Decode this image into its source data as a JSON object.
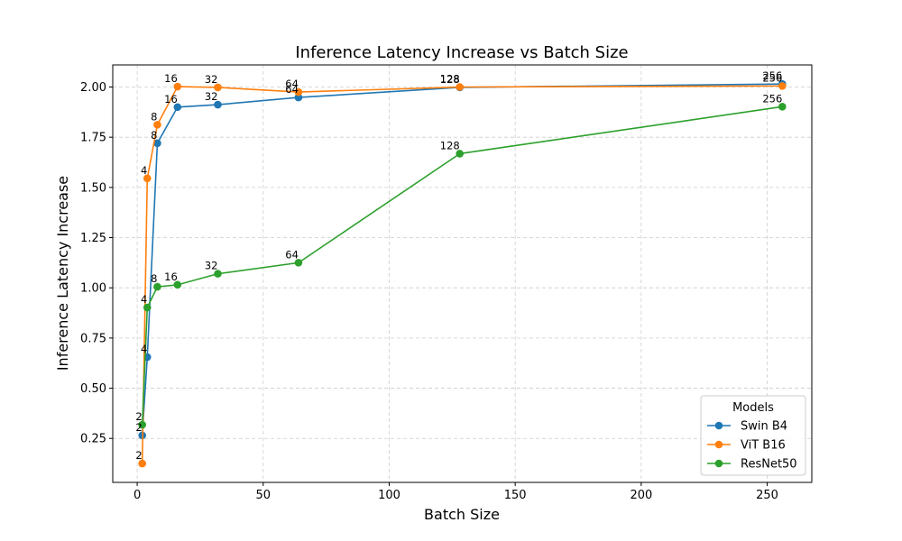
{
  "chart_data": {
    "type": "line",
    "title": "Inference Latency Increase vs Batch Size",
    "xlabel": "Batch Size",
    "ylabel": "Inference Latency Increase",
    "xlim": [
      -9.7,
      267.7
    ],
    "ylim": [
      0.031,
      2.11
    ],
    "xticks": [
      0,
      50,
      100,
      150,
      200,
      250
    ],
    "yticks": [
      0.25,
      0.5,
      0.75,
      1.0,
      1.25,
      1.5,
      1.75,
      2.0
    ],
    "ytick_labels": [
      "0.25",
      "0.50",
      "0.75",
      "1.00",
      "1.25",
      "1.50",
      "1.75",
      "2.00"
    ],
    "grid": true,
    "legend": {
      "title": "Models",
      "position": "lower-right"
    },
    "x": [
      2,
      4,
      8,
      16,
      32,
      64,
      128,
      256
    ],
    "series": [
      {
        "name": "Swin B4",
        "color": "#1f77b4",
        "values": [
          0.265,
          0.655,
          1.72,
          1.9,
          1.912,
          1.948,
          1.998,
          2.015
        ]
      },
      {
        "name": "ViT B16",
        "color": "#ff7f0e",
        "values": [
          0.125,
          1.545,
          1.812,
          2.002,
          1.998,
          1.975,
          2.0,
          2.005
        ]
      },
      {
        "name": "ResNet50",
        "color": "#2ca02c",
        "values": [
          0.318,
          0.902,
          1.005,
          1.015,
          1.07,
          1.125,
          1.668,
          1.902
        ]
      }
    ]
  }
}
